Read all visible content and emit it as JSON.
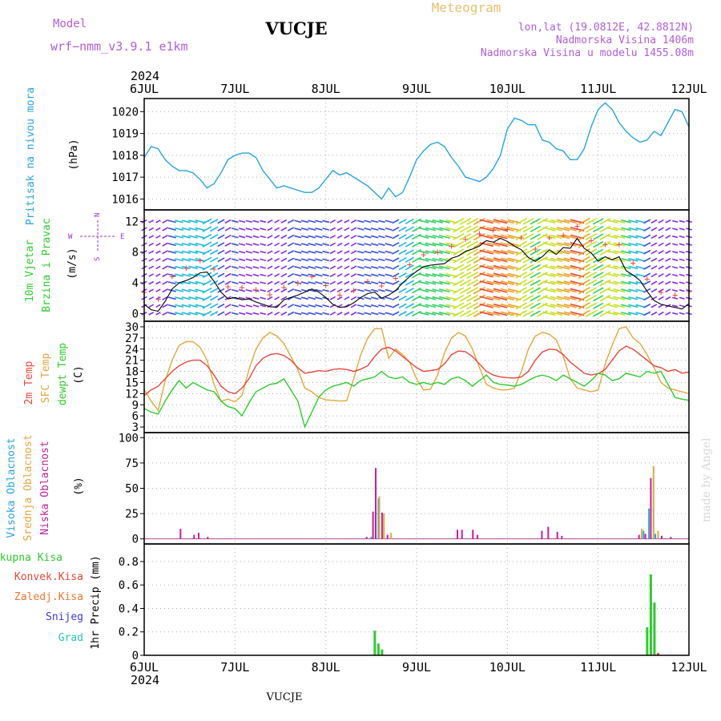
{
  "header": {
    "model_label": "Model",
    "model_name": "wrf−nmm_v3.9.1  e1km",
    "station": "VUCJE",
    "meteogram": "Meteogram",
    "coords": "lon,lat (19.0812E, 42.8812N)",
    "elevation": "Nadmorska Visina 1406m",
    "model_elevation": "Nadmorska Visina u modelu 1455.08m",
    "footer_station": "VUCJE",
    "watermark": "made by Angel"
  },
  "time_axis": {
    "year": "2024",
    "ticks": [
      "6JUL",
      "7JUL",
      "8JUL",
      "9JUL",
      "10JUL",
      "11JUL",
      "12JUL"
    ]
  },
  "colors": {
    "pressure": "#29a3e0",
    "temp2m": "#e8473d",
    "sfc": "#e0a83d",
    "dewpt": "#2ecc2e",
    "high_cloud": "#29a3e0",
    "mid_cloud": "#e0a83d",
    "low_cloud": "#c81e9a",
    "ukupna": "#2ecc2e",
    "konvek": "#e8473d",
    "zaledj": "#f07830",
    "snijeg": "#3b3bd8",
    "grad": "#24c8b0",
    "wind_label": "#9b30d0"
  },
  "chart_data": [
    {
      "type": "line",
      "panel": "pressure",
      "ylabel_title": "Pritisak na nivou mora",
      "ylabel_unit": "(hPa)",
      "ylim": [
        1015.5,
        1020.6
      ],
      "yticks": [
        "1016",
        "1017",
        "1018",
        "1019",
        "1020"
      ],
      "series": [
        {
          "values": [
            1017.9,
            1018.4,
            1018.3,
            1017.8,
            1017.5,
            1017.3,
            1017.3,
            1017.2,
            1016.9,
            1016.5,
            1016.7,
            1017.2,
            1017.8,
            1018.0,
            1018.1,
            1018.1,
            1017.9,
            1017.3,
            1016.9,
            1016.5,
            1016.6,
            1016.5,
            1016.4,
            1016.3,
            1016.3,
            1016.5,
            1016.9,
            1017.3,
            1017.1,
            1017.2,
            1017.0,
            1016.8,
            1016.6,
            1016.3,
            1016.0,
            1016.5,
            1016.1,
            1016.3,
            1017.0,
            1017.8,
            1018.2,
            1018.5,
            1018.6,
            1018.4,
            1017.9,
            1017.5,
            1017.0,
            1016.9,
            1016.8,
            1017.0,
            1017.4,
            1018.0,
            1019.2,
            1019.7,
            1019.6,
            1019.4,
            1019.4,
            1018.7,
            1018.6,
            1018.3,
            1018.2,
            1017.8,
            1017.8,
            1018.3,
            1019.3,
            1020.1,
            1020.4,
            1020.1,
            1019.5,
            1019.1,
            1018.8,
            1018.6,
            1018.7,
            1019.1,
            1018.9,
            1019.5,
            1020.1,
            1020.0,
            1019.3
          ]
        }
      ]
    },
    {
      "type": "line",
      "panel": "wind",
      "ylabel_title1": "10m Vjetar",
      "ylabel_title2": "Brzina i Pravac",
      "ylabel_unit": "(m/s)",
      "compass": [
        "N",
        "W",
        "E",
        "S"
      ],
      "ylim": [
        -1,
        13.5
      ],
      "yticks": [
        "0",
        "4",
        "8",
        "12"
      ],
      "series": [
        {
          "values": [
            1.2,
            0.5,
            0.3,
            1.6,
            3.2,
            4.0,
            4.3,
            4.7,
            5.3,
            5.4,
            4.2,
            2.8,
            1.9,
            2.1,
            1.8,
            1.9,
            1.5,
            1.2,
            0.9,
            0.8,
            1.8,
            2.1,
            2.4,
            2.8,
            3.2,
            2.8,
            2.1,
            1.2,
            0.8,
            0.9,
            1.4,
            2.1,
            2.6,
            2.8,
            2.0,
            2.4,
            3.0,
            4.0,
            4.8,
            5.5,
            6.1,
            6.3,
            6.4,
            6.5,
            7.2,
            7.5,
            8.1,
            8.4,
            8.8,
            9.5,
            9.3,
            9.8,
            9.4,
            8.8,
            8.3,
            7.3,
            6.8,
            7.4,
            8.3,
            7.7,
            8.6,
            8.5,
            9.8,
            8.5,
            7.9,
            6.8,
            7.4,
            7.0,
            7.4,
            5.6,
            5.0,
            4.3,
            2.9,
            1.7,
            1.2,
            1.0,
            0.8,
            0.6,
            1.3
          ]
        }
      ]
    },
    {
      "type": "line",
      "panel": "temperature",
      "ylabel_title1": "2m Temp",
      "ylabel_title2": "SFC Temp",
      "ylabel_title3": "dewpt Temp",
      "ylabel_unit": "(C)",
      "ylim": [
        1.5,
        31.5
      ],
      "yticks": [
        "3",
        "6",
        "9",
        "12",
        "15",
        "18",
        "21",
        "24",
        "27",
        "30"
      ],
      "series": [
        {
          "name": "2m Temp",
          "values": [
            11.5,
            13.0,
            14.0,
            16.0,
            18.0,
            19.5,
            20.5,
            21.0,
            21.0,
            19.5,
            17.0,
            14.0,
            12.5,
            12.0,
            13.5,
            16.0,
            19.5,
            21.5,
            22.5,
            22.8,
            22.3,
            21.0,
            19.0,
            17.5,
            17.8,
            18.2,
            18.0,
            18.5,
            18.7,
            18.5,
            18.0,
            18.6,
            19.5,
            22.0,
            24.0,
            24.5,
            23.5,
            22.0,
            20.5,
            19.0,
            18.0,
            18.2,
            18.5,
            20.0,
            22.5,
            23.5,
            23.3,
            22.0,
            20.0,
            18.0,
            17.0,
            16.5,
            16.3,
            16.2,
            16.5,
            18.0,
            21.0,
            23.2,
            24.0,
            23.8,
            22.5,
            20.5,
            19.0,
            17.5,
            17.0,
            17.4,
            18.5,
            21.0,
            23.5,
            24.8,
            24.0,
            22.5,
            21.0,
            19.5,
            19.0,
            18.0,
            18.5,
            17.5,
            17.8
          ]
        },
        {
          "name": "SFC Temp",
          "values": [
            13.0,
            10.0,
            7.5,
            15.5,
            21.0,
            25.0,
            26.0,
            26.0,
            24.5,
            21.0,
            14.5,
            10.0,
            10.5,
            9.8,
            11.5,
            18.5,
            24.0,
            27.0,
            28.5,
            27.5,
            25.5,
            22.0,
            18.5,
            13.5,
            12.5,
            11.0,
            10.3,
            10.2,
            10.0,
            10.1,
            16.0,
            22.5,
            27.0,
            29.5,
            29.5,
            21.5,
            24.0,
            22.5,
            20.5,
            16.0,
            13.0,
            13.2,
            17.0,
            23.0,
            27.0,
            28.5,
            27.5,
            24.0,
            19.0,
            14.5,
            13.5,
            13.0,
            13.0,
            13.5,
            18.0,
            24.0,
            27.5,
            28.5,
            28.0,
            26.5,
            22.0,
            16.0,
            13.5,
            13.0,
            12.5,
            13.0,
            20.0,
            25.0,
            29.5,
            30.0,
            27.0,
            25.5,
            22.5,
            19.0,
            15.0,
            13.5,
            13.0,
            12.5,
            12.0
          ]
        },
        {
          "name": "dewpt Temp",
          "values": [
            8.0,
            7.0,
            6.5,
            10.0,
            13.0,
            15.5,
            13.5,
            15.0,
            14.0,
            13.0,
            12.5,
            10.0,
            8.5,
            8.0,
            6.0,
            9.5,
            12.5,
            13.5,
            14.5,
            14.8,
            16.0,
            13.0,
            10.0,
            3.0,
            7.0,
            11.0,
            13.0,
            14.0,
            14.5,
            15.0,
            14.0,
            15.5,
            16.0,
            16.5,
            18.0,
            16.5,
            16.0,
            16.5,
            15.0,
            14.5,
            15.0,
            14.5,
            15.0,
            14.5,
            16.0,
            16.5,
            15.5,
            14.0,
            15.5,
            17.0,
            15.0,
            14.5,
            14.3,
            14.0,
            14.5,
            15.5,
            16.5,
            17.0,
            16.5,
            15.5,
            17.0,
            16.0,
            15.0,
            14.0,
            15.5,
            17.5,
            17.0,
            15.5,
            16.0,
            17.5,
            17.0,
            16.5,
            18.0,
            17.5,
            18.0,
            14.5,
            11.0,
            10.5,
            10.2
          ]
        }
      ]
    },
    {
      "type": "bar",
      "panel": "cloud",
      "ylabel_title1": "Visoka Oblacnost",
      "ylabel_title2": "Srednja Oblacnost",
      "ylabel_title3": "Niska Oblacnost",
      "ylabel_unit": "(%)",
      "ylim": [
        -5,
        105
      ],
      "yticks": [
        "0",
        "25",
        "50",
        "75",
        "100"
      ],
      "bars": [
        {
          "series": "Niska Oblacnost",
          "day": 0.4,
          "value": 10
        },
        {
          "series": "Niska Oblacnost",
          "day": 0.55,
          "value": 4
        },
        {
          "series": "Niska Oblacnost",
          "day": 0.6,
          "value": 6
        },
        {
          "series": "Niska Oblacnost",
          "day": 0.7,
          "value": 2
        },
        {
          "series": "Niska Oblacnost",
          "day": 2.45,
          "value": 2
        },
        {
          "series": "Visoka Oblacnost",
          "day": 2.5,
          "value": 2
        },
        {
          "series": "Niska Oblacnost",
          "day": 2.52,
          "value": 27
        },
        {
          "series": "Niska Oblacnost",
          "day": 2.55,
          "value": 70
        },
        {
          "series": "Visoka Oblacnost",
          "day": 2.58,
          "value": 40
        },
        {
          "series": "Srednja Oblacnost",
          "day": 2.59,
          "value": 42
        },
        {
          "series": "Niska Oblacnost",
          "day": 2.62,
          "value": 26
        },
        {
          "series": "Srednja Oblacnost",
          "day": 2.64,
          "value": 25
        },
        {
          "series": "Niska Oblacnost",
          "day": 2.68,
          "value": 4
        },
        {
          "series": "Srednja Oblacnost",
          "day": 2.72,
          "value": 6
        },
        {
          "series": "Niska Oblacnost",
          "day": 3.45,
          "value": 9
        },
        {
          "series": "Niska Oblacnost",
          "day": 3.5,
          "value": 9
        },
        {
          "series": "Niska Oblacnost",
          "day": 3.62,
          "value": 9
        },
        {
          "series": "Niska Oblacnost",
          "day": 3.67,
          "value": 4
        },
        {
          "series": "Niska Oblacnost",
          "day": 4.38,
          "value": 8
        },
        {
          "series": "Niska Oblacnost",
          "day": 4.45,
          "value": 12
        },
        {
          "series": "Niska Oblacnost",
          "day": 4.55,
          "value": 7
        },
        {
          "series": "Niska Oblacnost",
          "day": 4.6,
          "value": 3
        },
        {
          "series": "Niska Oblacnost",
          "day": 5.45,
          "value": 4
        },
        {
          "series": "Srednja Oblacnost",
          "day": 5.48,
          "value": 10
        },
        {
          "series": "Visoka Oblacnost",
          "day": 5.5,
          "value": 8
        },
        {
          "series": "Niska Oblacnost",
          "day": 5.52,
          "value": 5
        },
        {
          "series": "Visoka Oblacnost",
          "day": 5.56,
          "value": 30
        },
        {
          "series": "Niska Oblacnost",
          "day": 5.58,
          "value": 60
        },
        {
          "series": "Srednja Oblacnost",
          "day": 5.61,
          "value": 72
        },
        {
          "series": "Visoka Oblacnost",
          "day": 5.63,
          "value": 5
        },
        {
          "series": "Srednja Oblacnost",
          "day": 5.66,
          "value": 8
        },
        {
          "series": "Niska Oblacnost",
          "day": 5.7,
          "value": 3
        },
        {
          "series": "Niska Oblacnost",
          "day": 5.8,
          "value": 2
        }
      ]
    },
    {
      "type": "bar",
      "panel": "precip",
      "legend": [
        "Ukupna Kisa",
        "Konvek.Kisa",
        "Zaledj.Kisa",
        "Snijeg",
        "Grad"
      ],
      "ylabel_unit": "1hr Precip (mm)",
      "ylim": [
        0,
        0.95
      ],
      "yticks": [
        "0",
        "0.2",
        "0.4",
        "0.6",
        "0.8"
      ],
      "bars": [
        {
          "series": "Ukupna Kisa",
          "day": 2.54,
          "value": 0.21
        },
        {
          "series": "Ukupna Kisa",
          "day": 2.58,
          "value": 0.1
        },
        {
          "series": "Ukupna Kisa",
          "day": 2.62,
          "value": 0.05
        },
        {
          "series": "Ukupna Kisa",
          "day": 5.54,
          "value": 0.24
        },
        {
          "series": "Ukupna Kisa",
          "day": 5.58,
          "value": 0.69
        },
        {
          "series": "Ukupna Kisa",
          "day": 5.62,
          "value": 0.45
        },
        {
          "series": "Konvek.Kisa",
          "day": 5.66,
          "value": 0.02
        }
      ]
    }
  ]
}
